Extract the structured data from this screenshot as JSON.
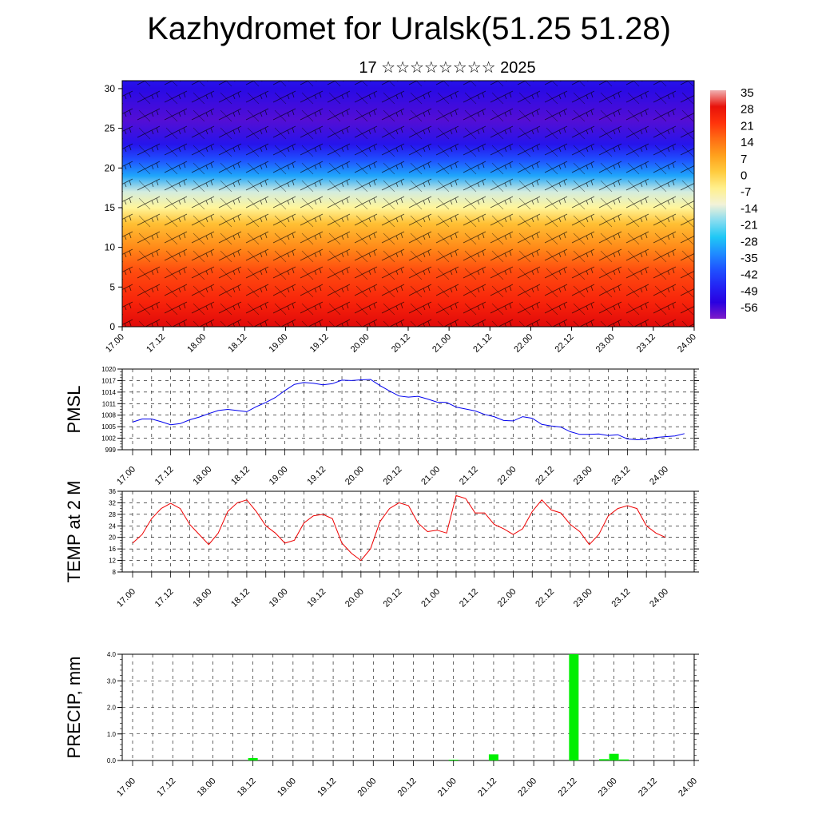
{
  "title": "Kazhydromet for Uralsk(51.25 51.28)",
  "subtitle": "17 ☆☆☆☆☆☆☆☆ 2025",
  "x_tick_labels": [
    "17.00",
    "17.12",
    "18.00",
    "18.12",
    "19.00",
    "19.12",
    "20.00",
    "20.12",
    "21.00",
    "21.12",
    "22.00",
    "22.12",
    "23.00",
    "23.12",
    "24.00"
  ],
  "chart_data": [
    {
      "type": "heatmap",
      "ylim": [
        0,
        31
      ],
      "yticks": [
        0,
        5,
        10,
        15,
        20,
        25,
        30
      ],
      "colorbar_labels": [
        "35",
        "28",
        "21",
        "14",
        "7",
        "0",
        "-7",
        "-14",
        "-21",
        "-28",
        "-35",
        "-42",
        "-49",
        "-56"
      ],
      "temperature_profile": [
        {
          "height": 0,
          "value": 30
        },
        {
          "height": 3,
          "value": 24
        },
        {
          "height": 7,
          "value": 18
        },
        {
          "height": 10,
          "value": 10
        },
        {
          "height": 13,
          "value": 2
        },
        {
          "height": 15,
          "value": -8
        },
        {
          "height": 17,
          "value": -16
        },
        {
          "height": 19,
          "value": -32
        },
        {
          "height": 21,
          "value": -42
        },
        {
          "height": 23,
          "value": -52
        },
        {
          "height": 26,
          "value": -58
        },
        {
          "height": 30,
          "value": -54
        },
        {
          "height": 31,
          "value": -52
        }
      ]
    },
    {
      "type": "line",
      "ylabel": "PMSL",
      "ylim": [
        999,
        1020
      ],
      "yticks": [
        999,
        1002,
        1005,
        1008,
        1011,
        1014,
        1017,
        1020
      ],
      "color": "#0000ee",
      "x_start_hours": 0,
      "x_step_hours": 3,
      "values": [
        1006.2,
        1007.0,
        1007.0,
        1006.3,
        1005.5,
        1005.8,
        1006.8,
        1007.5,
        1008.4,
        1009.2,
        1009.5,
        1009.2,
        1008.9,
        1010.2,
        1011.3,
        1012.6,
        1014.4,
        1016.0,
        1016.5,
        1016.3,
        1015.9,
        1016.2,
        1017.1,
        1017.0,
        1017.2,
        1017.3,
        1015.7,
        1014.3,
        1013.0,
        1012.7,
        1012.9,
        1012.2,
        1011.4,
        1011.3,
        1010.1,
        1009.6,
        1009.1,
        1008.2,
        1007.6,
        1006.6,
        1006.5,
        1007.6,
        1007.2,
        1005.6,
        1005.2,
        1004.9,
        1003.7,
        1003.0,
        1003.0,
        1003.1,
        1002.7,
        1002.9,
        1001.8,
        1001.6,
        1001.7,
        1002.2,
        1002.4,
        1002.6,
        1003.2
      ]
    },
    {
      "type": "line",
      "ylabel": "TEMP at 2 M",
      "ylim": [
        8,
        36
      ],
      "yticks": [
        8,
        12,
        16,
        20,
        24,
        28,
        32,
        36
      ],
      "color": "#ee0000",
      "x_start_hours": 0,
      "x_step_hours": 3,
      "values": [
        18.0,
        21.0,
        26.5,
        30.0,
        31.8,
        30.0,
        24.5,
        21.0,
        17.5,
        21.5,
        29.0,
        32.0,
        33.0,
        29.0,
        24.0,
        21.5,
        18.0,
        19.0,
        25.0,
        27.5,
        28.0,
        26.5,
        18.0,
        14.5,
        12.0,
        16.0,
        25.5,
        30.0,
        32.0,
        31.0,
        25.0,
        22.0,
        22.5,
        21.5,
        34.5,
        33.5,
        28.5,
        28.5,
        24.5,
        23.0,
        21.0,
        23.0,
        29.0,
        33.0,
        29.5,
        28.5,
        24.5,
        22.0,
        17.5,
        21.0,
        27.5,
        30.0,
        31.0,
        30.0,
        24.0,
        21.5,
        20.0
      ]
    },
    {
      "type": "bar",
      "ylabel": "PRECIP, mm",
      "ylim": [
        0,
        4
      ],
      "yticks": [
        "0.0",
        "1.0",
        "2.0",
        "3.0",
        "4.0"
      ],
      "color": "#00ee00",
      "bars": [
        {
          "x_hours": 36,
          "value": 0.09
        },
        {
          "x_hours": 96,
          "value": 0.03
        },
        {
          "x_hours": 108,
          "value": 0.23
        },
        {
          "x_hours": 132,
          "value": 4.0
        },
        {
          "x_hours": 141,
          "value": 0.05
        },
        {
          "x_hours": 144,
          "value": 0.25
        },
        {
          "x_hours": 147,
          "value": 0.04
        }
      ]
    }
  ]
}
